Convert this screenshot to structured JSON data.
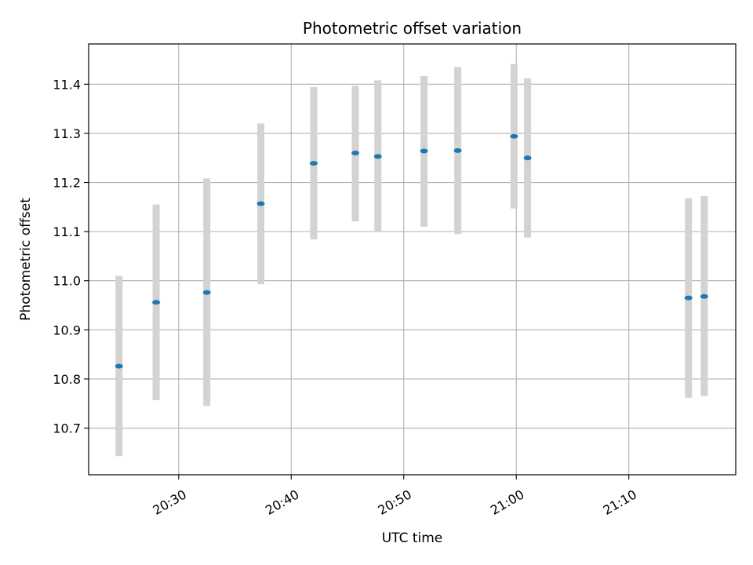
{
  "chart_data": {
    "type": "scatter",
    "title": "Photometric offset variation",
    "xlabel": "UTC time",
    "ylabel": "Photometric offset",
    "xlim": [
      "20:22",
      "21:19.5"
    ],
    "ylim": [
      10.605,
      11.482
    ],
    "x_ticks": [
      "20:30",
      "20:40",
      "20:50",
      "21:00",
      "21:10"
    ],
    "y_ticks": [
      10.7,
      10.8,
      10.9,
      11.0,
      11.1,
      11.2,
      11.3,
      11.4
    ],
    "grid": true,
    "colors": {
      "marker": "#1f77b4",
      "errorbar": "#d3d3d3",
      "grid": "#b0b0b0"
    },
    "points": [
      {
        "x": "20:24.7",
        "y": 10.826,
        "ylow": 10.643,
        "yhigh": 11.01
      },
      {
        "x": "20:28.0",
        "y": 10.956,
        "ylow": 10.757,
        "yhigh": 11.155
      },
      {
        "x": "20:32.5",
        "y": 10.976,
        "ylow": 10.745,
        "yhigh": 11.208
      },
      {
        "x": "20:37.3",
        "y": 11.157,
        "ylow": 10.993,
        "yhigh": 11.32
      },
      {
        "x": "20:42.0",
        "y": 11.239,
        "ylow": 11.084,
        "yhigh": 11.394
      },
      {
        "x": "20:45.7",
        "y": 11.26,
        "ylow": 11.121,
        "yhigh": 11.397
      },
      {
        "x": "20:47.7",
        "y": 11.253,
        "ylow": 11.099,
        "yhigh": 11.408
      },
      {
        "x": "20:51.8",
        "y": 11.264,
        "ylow": 11.11,
        "yhigh": 11.417
      },
      {
        "x": "20:54.8",
        "y": 11.265,
        "ylow": 11.095,
        "yhigh": 11.435
      },
      {
        "x": "20:59.8",
        "y": 11.294,
        "ylow": 11.147,
        "yhigh": 11.441
      },
      {
        "x": "21:01.0",
        "y": 11.25,
        "ylow": 11.088,
        "yhigh": 11.412
      },
      {
        "x": "21:15.3",
        "y": 10.965,
        "ylow": 10.762,
        "yhigh": 11.168
      },
      {
        "x": "21:16.7",
        "y": 10.968,
        "ylow": 10.765,
        "yhigh": 11.172
      }
    ]
  }
}
